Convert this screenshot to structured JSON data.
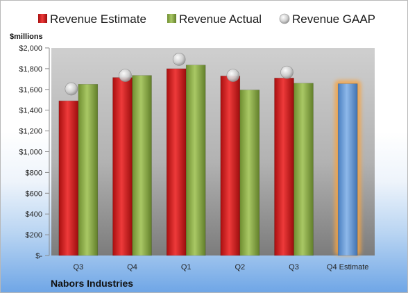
{
  "chart_data": {
    "type": "bar",
    "company": "Nabors Industries",
    "ylabel": "$millions",
    "ylim": [
      0,
      2000
    ],
    "yticks": [
      0,
      200,
      400,
      600,
      800,
      1000,
      1200,
      1400,
      1600,
      1800,
      2000
    ],
    "ytick_labels": [
      "$-",
      "$200",
      "$400",
      "$600",
      "$800",
      "$1,000",
      "$1,200",
      "$1,400",
      "$1,600",
      "$1,800",
      "$2,000"
    ],
    "categories": [
      "Q3",
      "Q4",
      "Q1",
      "Q2",
      "Q3",
      "Q4 Estimate"
    ],
    "legend": [
      "Revenue Estimate",
      "Revenue Actual",
      "Revenue GAAP"
    ],
    "series": [
      {
        "name": "Revenue Estimate",
        "kind": "bar",
        "color": "#d42020",
        "values": [
          1490,
          1715,
          1800,
          1730,
          1710,
          null
        ]
      },
      {
        "name": "Revenue Actual",
        "kind": "bar",
        "color": "#8fb14a",
        "values": [
          1650,
          1735,
          1835,
          1595,
          1660,
          null
        ]
      },
      {
        "name": "Revenue GAAP",
        "kind": "marker",
        "color": "#c0c0c0",
        "values": [
          1605,
          1735,
          1890,
          1735,
          1765,
          null
        ]
      },
      {
        "name": "Q4 Estimate",
        "kind": "bar",
        "color": "#6a9fdc",
        "highlight": "#f5a445",
        "values": [
          null,
          null,
          null,
          null,
          null,
          1655
        ]
      }
    ],
    "legend_position": "top",
    "grid": false
  }
}
